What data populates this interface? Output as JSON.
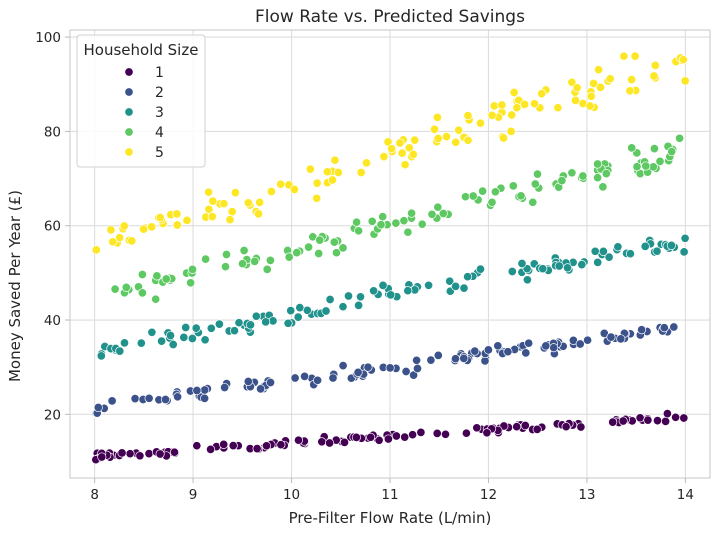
{
  "chart_data": {
    "type": "scatter",
    "title": "Flow Rate vs. Predicted Savings",
    "xlabel": "Pre-Filter Flow Rate (L/min)",
    "ylabel": "Money Saved Per Year (£)",
    "xlim": [
      7.75,
      14.25
    ],
    "ylim": [
      6.5,
      101.5
    ],
    "xticks": [
      8,
      9,
      10,
      11,
      12,
      13,
      14
    ],
    "yticks": [
      20,
      40,
      60,
      80,
      100
    ],
    "grid": true,
    "legend": {
      "title": "Household Size",
      "position": "top-left"
    },
    "points_per_series": 120,
    "series": [
      {
        "name": "1",
        "color": "#440154",
        "trend": {
          "x": [
            8,
            14
          ],
          "y": [
            11,
            19.5
          ]
        },
        "scatter": 0.7
      },
      {
        "name": "2",
        "color": "#3b528b",
        "trend": {
          "x": [
            8,
            14
          ],
          "y": [
            21.5,
            38.5
          ]
        },
        "scatter": 1.3
      },
      {
        "name": "3",
        "color": "#21918c",
        "trend": {
          "x": [
            8,
            14
          ],
          "y": [
            33.5,
            56.5
          ]
        },
        "scatter": 1.9
      },
      {
        "name": "4",
        "color": "#5ec962",
        "trend": {
          "x": [
            8,
            14
          ],
          "y": [
            44.5,
            76
          ]
        },
        "scatter": 2.6
      },
      {
        "name": "5",
        "color": "#fde725",
        "trend": {
          "x": [
            8,
            14
          ],
          "y": [
            56,
            95
          ]
        },
        "scatter": 3.2
      }
    ]
  }
}
